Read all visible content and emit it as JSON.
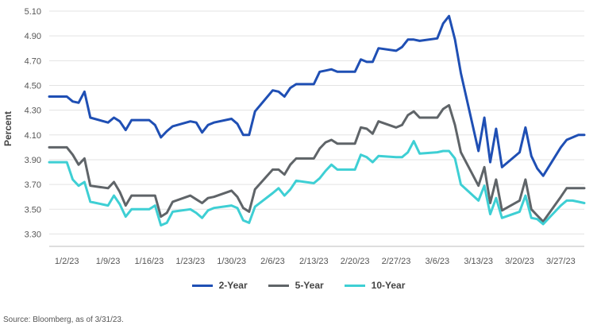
{
  "chart_data": {
    "type": "line",
    "ylabel": "Percent",
    "ylim": [
      3.2,
      5.1
    ],
    "yticks": [
      "5.10",
      "4.90",
      "4.70",
      "4.50",
      "4.30",
      "4.10",
      "3.90",
      "3.70",
      "3.50",
      "3.30"
    ],
    "xticks": [
      "1/2/23",
      "1/9/23",
      "1/16/23",
      "1/23/23",
      "1/30/23",
      "2/6/23",
      "2/13/23",
      "2/20/23",
      "2/27/23",
      "3/6/23",
      "3/13/23",
      "3/20/23",
      "3/27/23"
    ],
    "grid": true,
    "legend_position": "bottom",
    "x": [
      "12/30/22",
      "1/2/23",
      "1/3/23",
      "1/4/23",
      "1/5/23",
      "1/6/23",
      "1/9/23",
      "1/10/23",
      "1/11/23",
      "1/12/23",
      "1/13/23",
      "1/16/23",
      "1/17/23",
      "1/18/23",
      "1/19/23",
      "1/20/23",
      "1/23/23",
      "1/24/23",
      "1/25/23",
      "1/26/23",
      "1/27/23",
      "1/30/23",
      "1/31/23",
      "2/1/23",
      "2/2/23",
      "2/3/23",
      "2/6/23",
      "2/7/23",
      "2/8/23",
      "2/9/23",
      "2/10/23",
      "2/13/23",
      "2/14/23",
      "2/15/23",
      "2/16/23",
      "2/17/23",
      "2/20/23",
      "2/21/23",
      "2/22/23",
      "2/23/23",
      "2/24/23",
      "2/27/23",
      "2/28/23",
      "3/1/23",
      "3/2/23",
      "3/3/23",
      "3/6/23",
      "3/7/23",
      "3/8/23",
      "3/9/23",
      "3/10/23",
      "3/13/23",
      "3/14/23",
      "3/15/23",
      "3/16/23",
      "3/17/23",
      "3/20/23",
      "3/21/23",
      "3/22/23",
      "3/23/23",
      "3/24/23",
      "3/27/23",
      "3/28/23",
      "3/29/23",
      "3/30/23",
      "3/31/23"
    ],
    "series": [
      {
        "name": "2-Year",
        "color": "#1f4fb4",
        "values": [
          4.41,
          4.41,
          4.37,
          4.36,
          4.45,
          4.24,
          4.2,
          4.24,
          4.21,
          4.14,
          4.22,
          4.22,
          4.18,
          4.08,
          4.13,
          4.17,
          4.21,
          4.2,
          4.12,
          4.18,
          4.2,
          4.23,
          4.19,
          4.1,
          4.1,
          4.29,
          4.46,
          4.45,
          4.41,
          4.48,
          4.51,
          4.51,
          4.61,
          4.62,
          4.63,
          4.61,
          4.61,
          4.71,
          4.69,
          4.69,
          4.8,
          4.78,
          4.81,
          4.87,
          4.87,
          4.86,
          4.88,
          5.0,
          5.06,
          4.87,
          4.6,
          3.97,
          4.24,
          3.88,
          4.15,
          3.84,
          3.96,
          4.16,
          3.93,
          3.83,
          3.77,
          4.0,
          4.06,
          4.08,
          4.1,
          4.1
        ]
      },
      {
        "name": "5-Year",
        "color": "#5f6468",
        "values": [
          4.0,
          4.0,
          3.94,
          3.86,
          3.91,
          3.69,
          3.67,
          3.72,
          3.64,
          3.53,
          3.61,
          3.61,
          3.61,
          3.44,
          3.47,
          3.56,
          3.61,
          3.58,
          3.55,
          3.59,
          3.6,
          3.65,
          3.6,
          3.51,
          3.48,
          3.66,
          3.82,
          3.82,
          3.78,
          3.86,
          3.91,
          3.91,
          3.99,
          4.04,
          4.06,
          4.03,
          4.03,
          4.16,
          4.15,
          4.11,
          4.21,
          4.16,
          4.18,
          4.26,
          4.29,
          4.24,
          4.24,
          4.31,
          4.34,
          4.18,
          3.96,
          3.69,
          3.84,
          3.55,
          3.74,
          3.49,
          3.57,
          3.74,
          3.5,
          3.45,
          3.4,
          3.6,
          3.67,
          3.67,
          3.67,
          3.67
        ]
      },
      {
        "name": "10-Year",
        "color": "#3ecfd4",
        "values": [
          3.88,
          3.88,
          3.74,
          3.69,
          3.72,
          3.56,
          3.53,
          3.61,
          3.54,
          3.44,
          3.5,
          3.5,
          3.53,
          3.37,
          3.39,
          3.48,
          3.5,
          3.47,
          3.43,
          3.49,
          3.51,
          3.53,
          3.51,
          3.41,
          3.39,
          3.52,
          3.63,
          3.67,
          3.61,
          3.66,
          3.73,
          3.71,
          3.75,
          3.81,
          3.86,
          3.82,
          3.82,
          3.94,
          3.92,
          3.88,
          3.93,
          3.92,
          3.92,
          3.96,
          4.05,
          3.95,
          3.96,
          3.97,
          3.97,
          3.91,
          3.7,
          3.57,
          3.69,
          3.46,
          3.59,
          3.43,
          3.48,
          3.61,
          3.43,
          3.42,
          3.38,
          3.53,
          3.57,
          3.57,
          3.56,
          3.55
        ]
      }
    ]
  },
  "source_note": "Source: Bloomberg, as of 3/31/23."
}
